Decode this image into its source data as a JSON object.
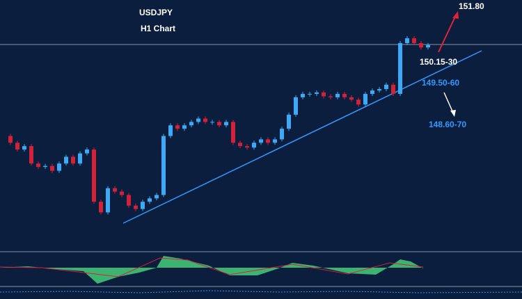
{
  "chart_data": {
    "type": "candlestick",
    "title": "USDJPY",
    "subtitle": "H1 Chart",
    "annotations": [
      "151.80",
      "150.15-30",
      "149.50-60",
      "148.60-70"
    ],
    "close": [
      148.39,
      148.25,
      148.11,
      148.18,
      147.82,
      147.75,
      147.77,
      147.67,
      147.82,
      147.96,
      147.82,
      148.03,
      148.11,
      147.03,
      146.81,
      147.31,
      147.24,
      147.17,
      146.95,
      146.88,
      147.03,
      147.1,
      147.17,
      148.39,
      148.61,
      148.54,
      148.61,
      148.68,
      148.75,
      148.68,
      148.68,
      148.61,
      148.68,
      148.25,
      148.18,
      148.15,
      148.25,
      148.32,
      148.25,
      148.32,
      148.54,
      148.83,
      149.19,
      149.26,
      149.26,
      149.29,
      149.21,
      149.19,
      149.26,
      149.19,
      149.14,
      149.04,
      149.26,
      149.33,
      149.36,
      149.45,
      149.26,
      150.31,
      150.41,
      150.31,
      150.22,
      150.27
    ],
    "up_color": "#3fa9f5",
    "down_color": "#d0233a",
    "ylim": [
      146.5,
      151.0
    ]
  }
}
